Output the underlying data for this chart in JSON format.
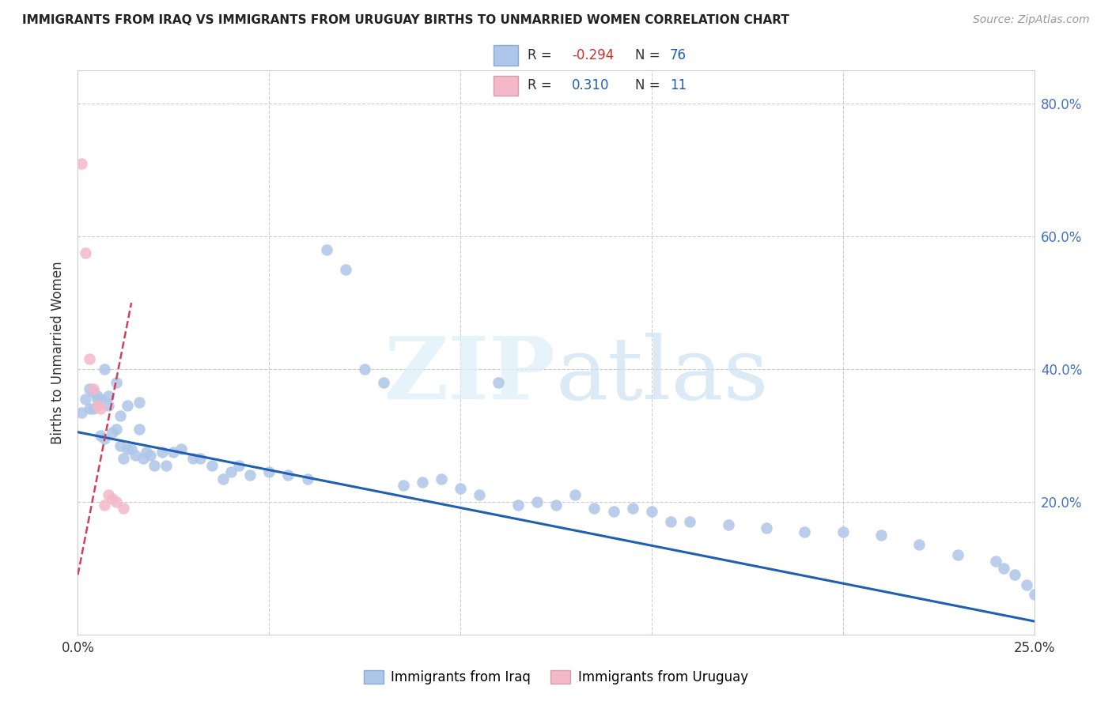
{
  "title": "IMMIGRANTS FROM IRAQ VS IMMIGRANTS FROM URUGUAY BIRTHS TO UNMARRIED WOMEN CORRELATION CHART",
  "source": "Source: ZipAtlas.com",
  "ylabel": "Births to Unmarried Women",
  "xlim": [
    0.0,
    0.25
  ],
  "ylim": [
    0.0,
    0.85
  ],
  "ytick_pos": [
    0.0,
    0.2,
    0.4,
    0.6,
    0.8
  ],
  "ytick_labels": [
    "",
    "20.0%",
    "40.0%",
    "60.0%",
    "80.0%"
  ],
  "xtick_pos": [
    0.0,
    0.05,
    0.1,
    0.15,
    0.2,
    0.25
  ],
  "xtick_labels": [
    "0.0%",
    "",
    "",
    "",
    "",
    "25.0%"
  ],
  "legend_iraq_r": "-0.294",
  "legend_iraq_n": "76",
  "legend_uruguay_r": "0.310",
  "legend_uruguay_n": "11",
  "iraq_color": "#aec6e8",
  "uruguay_color": "#f4b8c8",
  "iraq_line_color": "#2060b0",
  "uruguay_line_color": "#d04060",
  "iraq_scatter_x": [
    0.001,
    0.002,
    0.003,
    0.003,
    0.004,
    0.004,
    0.005,
    0.005,
    0.006,
    0.006,
    0.007,
    0.007,
    0.008,
    0.008,
    0.009,
    0.01,
    0.01,
    0.011,
    0.011,
    0.012,
    0.013,
    0.013,
    0.014,
    0.015,
    0.016,
    0.016,
    0.017,
    0.018,
    0.019,
    0.02,
    0.022,
    0.023,
    0.025,
    0.027,
    0.03,
    0.032,
    0.035,
    0.038,
    0.04,
    0.042,
    0.045,
    0.05,
    0.055,
    0.06,
    0.065,
    0.07,
    0.075,
    0.08,
    0.085,
    0.09,
    0.095,
    0.1,
    0.105,
    0.11,
    0.115,
    0.12,
    0.125,
    0.13,
    0.135,
    0.14,
    0.145,
    0.15,
    0.155,
    0.16,
    0.17,
    0.18,
    0.19,
    0.2,
    0.21,
    0.22,
    0.23,
    0.24,
    0.242,
    0.245,
    0.248,
    0.25
  ],
  "iraq_scatter_y": [
    0.335,
    0.355,
    0.37,
    0.34,
    0.365,
    0.34,
    0.355,
    0.36,
    0.3,
    0.355,
    0.295,
    0.4,
    0.345,
    0.36,
    0.305,
    0.31,
    0.38,
    0.285,
    0.33,
    0.265,
    0.28,
    0.345,
    0.28,
    0.27,
    0.31,
    0.35,
    0.265,
    0.275,
    0.27,
    0.255,
    0.275,
    0.255,
    0.275,
    0.28,
    0.265,
    0.265,
    0.255,
    0.235,
    0.245,
    0.255,
    0.24,
    0.245,
    0.24,
    0.235,
    0.58,
    0.55,
    0.4,
    0.38,
    0.225,
    0.23,
    0.235,
    0.22,
    0.21,
    0.38,
    0.195,
    0.2,
    0.195,
    0.21,
    0.19,
    0.185,
    0.19,
    0.185,
    0.17,
    0.17,
    0.165,
    0.16,
    0.155,
    0.155,
    0.15,
    0.135,
    0.12,
    0.11,
    0.1,
    0.09,
    0.075,
    0.06
  ],
  "uruguay_scatter_x": [
    0.001,
    0.002,
    0.003,
    0.004,
    0.005,
    0.006,
    0.007,
    0.008,
    0.009,
    0.01,
    0.012
  ],
  "uruguay_scatter_y": [
    0.71,
    0.575,
    0.415,
    0.37,
    0.345,
    0.34,
    0.195,
    0.21,
    0.205,
    0.2,
    0.19
  ],
  "iraq_line_x0": 0.0,
  "iraq_line_y0": 0.305,
  "iraq_line_x1": 0.25,
  "iraq_line_y1": 0.02,
  "uruguay_line_x0": 0.0,
  "uruguay_line_y0": 0.09,
  "uruguay_line_x1": 0.014,
  "uruguay_line_y1": 0.5
}
